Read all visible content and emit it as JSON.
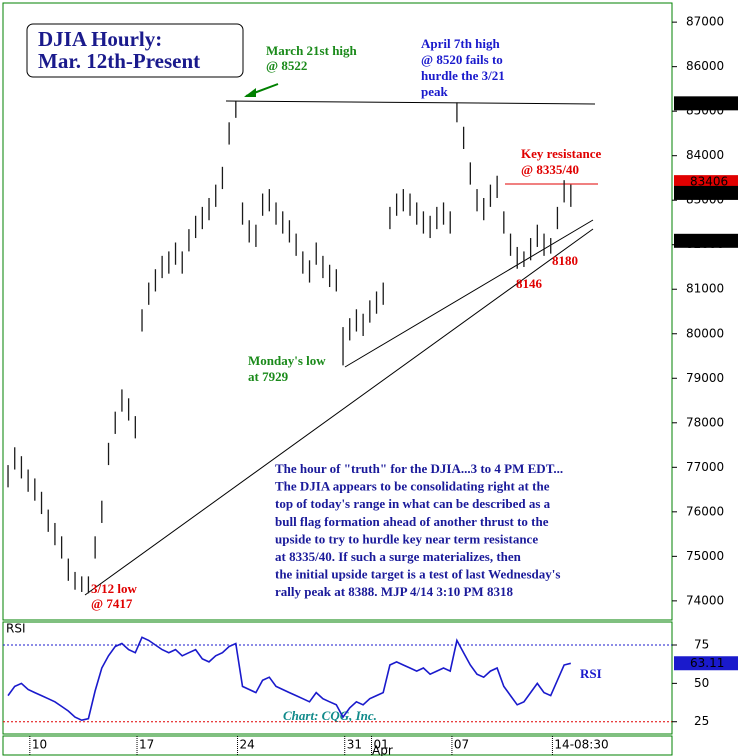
{
  "chart_data": [
    {
      "type": "ohlc",
      "title": [
        "DJIA Hourly:",
        "Mar. 12th-Present"
      ],
      "highs": [
        77050,
        77450,
        77250,
        76950,
        76750,
        76450,
        76050,
        75750,
        75450,
        74950,
        74650,
        74550,
        74550,
        75450,
        76250,
        77550,
        78250,
        78750,
        78550,
        78150,
        80550,
        81150,
        81450,
        81750,
        81850,
        82050,
        81850,
        82350,
        82650,
        82850,
        83050,
        83350,
        83750,
        84750,
        85220,
        82950,
        82550,
        82450,
        83150,
        83250,
        82950,
        82750,
        82550,
        82250,
        81850,
        81650,
        82050,
        81750,
        81550,
        81450,
        80150,
        80350,
        80550,
        80450,
        80750,
        80950,
        81150,
        82850,
        83150,
        83250,
        83150,
        82950,
        82750,
        82650,
        82850,
        82950,
        82750,
        85200,
        84650,
        83850,
        83250,
        83050,
        83350,
        83550,
        82750,
        82250,
        81950,
        81850,
        82150,
        82450,
        82250,
        82150,
        82850,
        83450,
        83350
      ],
      "lows": [
        76550,
        76950,
        76750,
        76450,
        76250,
        75950,
        75550,
        75250,
        74950,
        74450,
        74250,
        74200,
        74170,
        74950,
        75750,
        77050,
        77750,
        78250,
        78050,
        77650,
        80050,
        80650,
        80950,
        81250,
        81350,
        81550,
        81350,
        81850,
        82150,
        82350,
        82550,
        82850,
        83250,
        84250,
        84850,
        82450,
        82050,
        81950,
        82650,
        82750,
        82450,
        82250,
        82050,
        81750,
        81350,
        81150,
        81550,
        81250,
        81050,
        80950,
        79290,
        79850,
        80050,
        79950,
        80250,
        80450,
        80650,
        82350,
        82650,
        82750,
        82650,
        82450,
        82250,
        82150,
        82350,
        82450,
        82250,
        84750,
        84150,
        83350,
        82750,
        82550,
        82850,
        83050,
        82250,
        81750,
        81460,
        81500,
        81650,
        81950,
        81750,
        81800,
        82350,
        82950,
        82850
      ],
      "color": "#1a1a1a",
      "xlim": [
        -0.75,
        99.1
      ],
      "xticks": [
        {
          "value": 4,
          "label": "10"
        },
        {
          "value": 20,
          "label": "17"
        },
        {
          "value": 35,
          "label": "24"
        },
        {
          "value": 51,
          "label": "31"
        },
        {
          "value": 55,
          "label": "01"
        },
        {
          "value": 67,
          "label": "07"
        },
        {
          "value": 82,
          "label": "14-08:30"
        }
      ],
      "xlabel": "Apr",
      "ylim": [
        73570,
        87430
      ],
      "yticks": [
        74000,
        75000,
        76000,
        77000,
        78000,
        79000,
        80000,
        81000,
        82000,
        83000,
        84000,
        85000,
        86000,
        87000
      ],
      "price_markers": [
        {
          "value": 85176,
          "color": "#000000"
        },
        {
          "value": 83406,
          "color": "#e00000"
        },
        {
          "value": 83164,
          "color": "#000000"
        },
        {
          "value": 82088,
          "color": "#000000"
        }
      ],
      "annotations": {
        "march_high": [
          "March 21st high",
          "@ 8522"
        ],
        "april_high": [
          "April 7th high",
          "@ 8520 fails to",
          "hurdle the 3/21",
          "peak"
        ],
        "resistance": [
          "Key resistance",
          "@ 8335/40"
        ],
        "low_8180": "8180",
        "low_8146": "8146",
        "monday_low": [
          "Monday's low",
          "at 7929"
        ],
        "march_low": [
          "3/12 low",
          "@ 7417"
        ],
        "commentary": [
          "The hour of \"truth\" for the DJIA...3 to 4 PM EDT...",
          "The DJIA appears to be consolidating right at the",
          "top of today's range in what can be described as a",
          "bull flag formation ahead of another thrust to the",
          "upside to try to hurdle key near term resistance",
          "at 8335/40.  If such a surge materializes, then",
          "the initial upside target is a test of last Wednesday's",
          "rally peak at 8388. MJP  4/14 3:10 PM  8318"
        ]
      }
    },
    {
      "type": "line",
      "title": "RSI",
      "series": [
        {
          "name": "RSI",
          "color": "#1a1acc",
          "values": [
            42,
            48,
            50,
            46,
            44,
            42,
            40,
            38,
            35,
            32,
            28,
            26,
            27,
            45,
            60,
            68,
            74,
            76,
            72,
            70,
            80,
            78,
            75,
            72,
            70,
            72,
            68,
            70,
            72,
            66,
            64,
            68,
            70,
            74,
            76,
            48,
            46,
            44,
            52,
            54,
            48,
            46,
            44,
            42,
            40,
            38,
            44,
            40,
            38,
            36,
            28,
            34,
            38,
            36,
            40,
            42,
            44,
            62,
            64,
            62,
            60,
            58,
            60,
            56,
            58,
            60,
            58,
            78,
            70,
            62,
            56,
            54,
            58,
            60,
            48,
            42,
            36,
            38,
            44,
            50,
            44,
            42,
            52,
            62,
            63.11
          ]
        }
      ],
      "ylim": [
        17,
        90
      ],
      "yticks": [
        25,
        50,
        75
      ],
      "source": "Chart: CQG, Inc."
    }
  ]
}
